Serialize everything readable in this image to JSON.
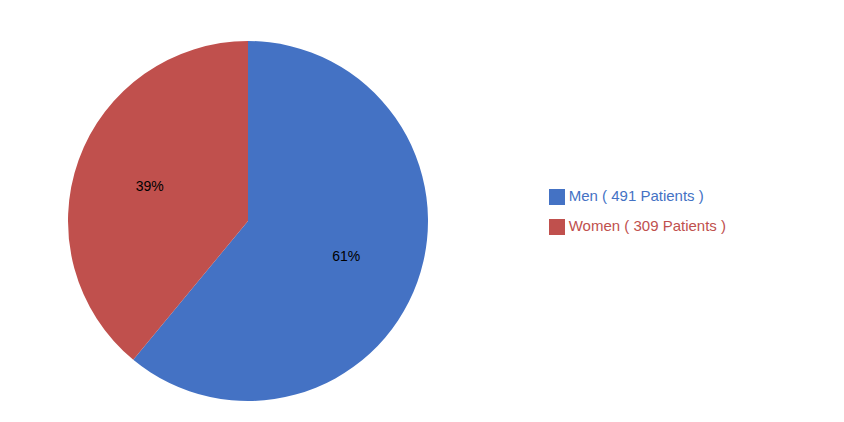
{
  "chart_data": {
    "type": "pie",
    "categories": [
      "Men ( 491 Patients )",
      "Women ( 309 Patients )"
    ],
    "values": [
      61,
      39
    ],
    "value_labels": [
      "61%",
      "39%"
    ],
    "colors": [
      "#4472C4",
      "#C0504D"
    ],
    "data_labels": true,
    "legend": "right"
  }
}
